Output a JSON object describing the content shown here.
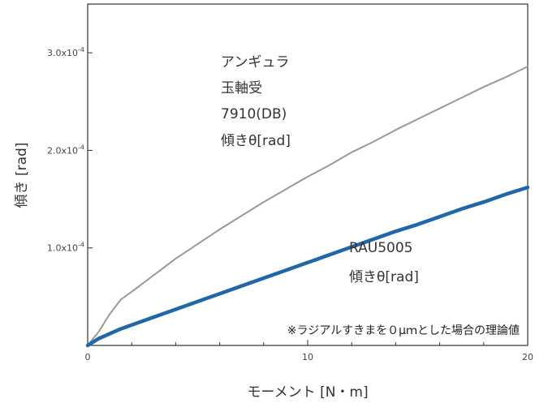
{
  "chart_data": {
    "type": "line",
    "title": "",
    "xlabel": "モーメント [N・m]",
    "ylabel": "傾き [rad]",
    "xlim": [
      0,
      20
    ],
    "ylim": [
      0,
      0.00035
    ],
    "x_ticks": [
      {
        "value": 0,
        "label": "0"
      },
      {
        "value": 10,
        "label": "10"
      },
      {
        "value": 20,
        "label": "20"
      }
    ],
    "y_ticks": [
      {
        "value": 0.0001,
        "base": "1.0x10",
        "exp": "-4"
      },
      {
        "value": 0.0002,
        "base": "2.0x10",
        "exp": "-4"
      },
      {
        "value": 0.0003,
        "base": "3.0x10",
        "exp": "-4"
      }
    ],
    "grid": false,
    "legend": "none",
    "series": [
      {
        "name": "アンギュラ玉軸受 7910(DB) 傾きθ[rad]",
        "color": "#999999",
        "x": [
          0,
          0.5,
          1,
          1.5,
          2,
          3,
          4,
          5,
          6,
          7,
          8,
          9,
          10,
          11,
          12,
          13,
          14,
          15,
          16,
          17,
          18,
          19,
          20
        ],
        "y": [
          0,
          1.4e-05,
          3.2e-05,
          4.7e-05,
          5.5e-05,
          7.2e-05,
          8.9e-05,
          0.000104,
          0.000119,
          0.000133,
          0.000147,
          0.00016,
          0.000173,
          0.000185,
          0.000198,
          0.000209,
          0.000221,
          0.000232,
          0.000243,
          0.000254,
          0.000265,
          0.000275,
          0.000286
        ]
      },
      {
        "name": "RAU5005 傾きθ[rad]",
        "color": "#2266AA",
        "x": [
          0,
          0.5,
          1,
          1.5,
          2,
          3,
          4,
          5,
          6,
          7,
          8,
          9,
          10,
          11,
          12,
          13,
          14,
          15,
          16,
          17,
          18,
          19,
          20
        ],
        "y": [
          0,
          7e-06,
          1.2e-05,
          1.7e-05,
          2.1e-05,
          2.9e-05,
          3.7e-05,
          4.5e-05,
          5.3e-05,
          6.1e-05,
          6.9e-05,
          7.7e-05,
          8.5e-05,
          9.3e-05,
          0.000101,
          0.000109,
          0.000117,
          0.000124,
          0.000132,
          0.00014,
          0.000147,
          0.000155,
          0.000162
        ]
      }
    ],
    "annotations": {
      "angular": [
        "アンギュラ",
        "玉軸受",
        "7910(DB)",
        "傾きθ[rad]"
      ],
      "rau": [
        "RAU5005",
        "傾きθ[rad]"
      ],
      "note": "※ラジアルすきまを０μｍとした場合の理論値"
    }
  }
}
